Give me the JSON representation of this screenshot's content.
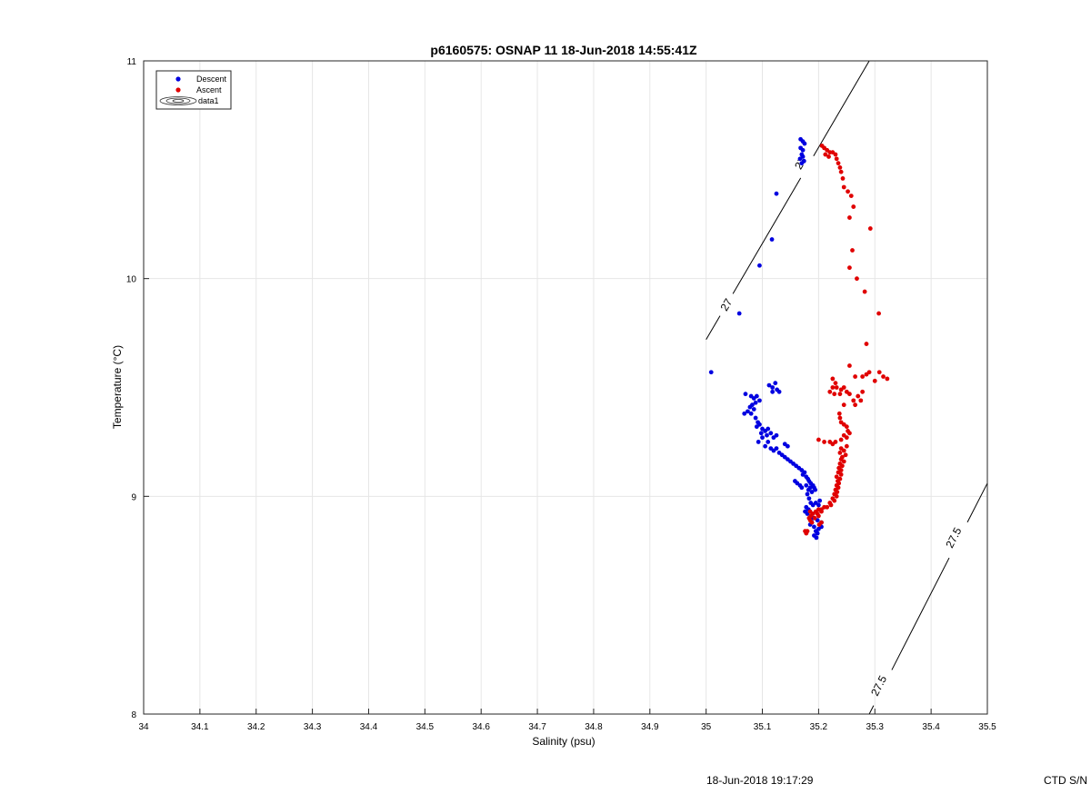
{
  "chart_data": {
    "type": "scatter",
    "title": "p6160575: OSNAP 11 18-Jun-2018 14:55:41Z",
    "xlabel": "Salinity (psu)",
    "ylabel": "Temperature (°C)",
    "xlim": [
      34,
      35.5
    ],
    "ylim": [
      8,
      11
    ],
    "x_ticks": [
      "34",
      "34.1",
      "34.2",
      "34.3",
      "34.4",
      "34.5",
      "34.6",
      "34.7",
      "34.8",
      "34.9",
      "35",
      "35.1",
      "35.2",
      "35.3",
      "35.4",
      "35.5"
    ],
    "y_ticks": [
      "8",
      "9",
      "10",
      "11"
    ],
    "grid": true,
    "legend_position": "top-left",
    "legend": [
      "Descent",
      "Ascent",
      "data1"
    ],
    "contours": [
      {
        "level": "27",
        "points": [
          [
            35.0,
            9.72
          ],
          [
            35.29,
            11.0
          ]
        ],
        "labels": [
          [
            35.036,
            9.88
          ],
          [
            35.168,
            10.53
          ]
        ]
      },
      {
        "level": "27.5",
        "points": [
          [
            35.29,
            8.0
          ],
          [
            35.5,
            9.06
          ]
        ],
        "labels": [
          [
            35.307,
            8.13
          ],
          [
            35.44,
            8.81
          ]
        ]
      }
    ],
    "series": [
      {
        "name": "Descent",
        "color": "#0000e0",
        "points": [
          [
            35.168,
            10.64
          ],
          [
            35.172,
            10.63
          ],
          [
            35.175,
            10.62
          ],
          [
            35.168,
            10.6
          ],
          [
            35.172,
            10.59
          ],
          [
            35.17,
            10.57
          ],
          [
            35.167,
            10.55
          ],
          [
            35.174,
            10.54
          ],
          [
            35.172,
            10.56
          ],
          [
            35.17,
            10.53
          ],
          [
            35.125,
            10.39
          ],
          [
            35.117,
            10.18
          ],
          [
            35.095,
            10.06
          ],
          [
            35.059,
            9.84
          ],
          [
            35.009,
            9.57
          ],
          [
            35.07,
            9.47
          ],
          [
            35.08,
            9.46
          ],
          [
            35.085,
            9.45
          ],
          [
            35.09,
            9.46
          ],
          [
            35.095,
            9.44
          ],
          [
            35.088,
            9.43
          ],
          [
            35.082,
            9.42
          ],
          [
            35.078,
            9.41
          ],
          [
            35.085,
            9.4
          ],
          [
            35.074,
            9.39
          ],
          [
            35.068,
            9.38
          ],
          [
            35.08,
            9.38
          ],
          [
            35.112,
            9.51
          ],
          [
            35.118,
            9.5
          ],
          [
            35.123,
            9.52
          ],
          [
            35.126,
            9.49
          ],
          [
            35.118,
            9.48
          ],
          [
            35.13,
            9.48
          ],
          [
            35.088,
            9.36
          ],
          [
            35.092,
            9.34
          ],
          [
            35.095,
            9.33
          ],
          [
            35.09,
            9.32
          ],
          [
            35.1,
            9.31
          ],
          [
            35.105,
            9.3
          ],
          [
            35.11,
            9.31
          ],
          [
            35.115,
            9.29
          ],
          [
            35.108,
            9.28
          ],
          [
            35.12,
            9.27
          ],
          [
            35.125,
            9.28
          ],
          [
            35.1,
            9.27
          ],
          [
            35.098,
            9.29
          ],
          [
            35.093,
            9.25
          ],
          [
            35.11,
            9.25
          ],
          [
            35.105,
            9.23
          ],
          [
            35.115,
            9.22
          ],
          [
            35.12,
            9.21
          ],
          [
            35.125,
            9.22
          ],
          [
            35.13,
            9.2
          ],
          [
            35.14,
            9.24
          ],
          [
            35.145,
            9.23
          ],
          [
            35.135,
            9.19
          ],
          [
            35.14,
            9.18
          ],
          [
            35.145,
            9.17
          ],
          [
            35.15,
            9.16
          ],
          [
            35.155,
            9.15
          ],
          [
            35.16,
            9.14
          ],
          [
            35.165,
            9.13
          ],
          [
            35.17,
            9.12
          ],
          [
            35.175,
            9.11
          ],
          [
            35.172,
            9.1
          ],
          [
            35.178,
            9.09
          ],
          [
            35.181,
            9.08
          ],
          [
            35.183,
            9.07
          ],
          [
            35.186,
            9.06
          ],
          [
            35.19,
            9.05
          ],
          [
            35.192,
            9.04
          ],
          [
            35.194,
            9.03
          ],
          [
            35.188,
            9.02
          ],
          [
            35.185,
            9.04
          ],
          [
            35.182,
            9.03
          ],
          [
            35.178,
            9.05
          ],
          [
            35.18,
            9.01
          ],
          [
            35.183,
            8.99
          ],
          [
            35.186,
            8.97
          ],
          [
            35.19,
            8.96
          ],
          [
            35.178,
            8.95
          ],
          [
            35.182,
            8.94
          ],
          [
            35.176,
            8.93
          ],
          [
            35.18,
            8.92
          ],
          [
            35.195,
            8.97
          ],
          [
            35.2,
            8.96
          ],
          [
            35.202,
            8.98
          ],
          [
            35.19,
            8.9
          ],
          [
            35.188,
            8.88
          ],
          [
            35.192,
            8.86
          ],
          [
            35.185,
            8.87
          ],
          [
            35.195,
            8.84
          ],
          [
            35.198,
            8.83
          ],
          [
            35.192,
            8.82
          ],
          [
            35.196,
            8.81
          ],
          [
            35.2,
            8.85
          ],
          [
            35.205,
            8.86
          ],
          [
            35.205,
            8.88
          ],
          [
            35.198,
            8.89
          ],
          [
            35.162,
            9.06
          ],
          [
            35.167,
            9.05
          ],
          [
            35.17,
            9.04
          ],
          [
            35.158,
            9.07
          ]
        ]
      },
      {
        "name": "Ascent",
        "color": "#e00000",
        "points": [
          [
            35.206,
            10.61
          ],
          [
            35.21,
            10.6
          ],
          [
            35.215,
            10.59
          ],
          [
            35.22,
            10.58
          ],
          [
            35.212,
            10.57
          ],
          [
            35.218,
            10.56
          ],
          [
            35.225,
            10.58
          ],
          [
            35.23,
            10.57
          ],
          [
            35.232,
            10.55
          ],
          [
            35.235,
            10.53
          ],
          [
            35.238,
            10.51
          ],
          [
            35.24,
            10.49
          ],
          [
            35.243,
            10.46
          ],
          [
            35.245,
            10.42
          ],
          [
            35.252,
            10.4
          ],
          [
            35.258,
            10.38
          ],
          [
            35.262,
            10.33
          ],
          [
            35.255,
            10.28
          ],
          [
            35.292,
            10.23
          ],
          [
            35.26,
            10.13
          ],
          [
            35.255,
            10.05
          ],
          [
            35.268,
            10.0
          ],
          [
            35.282,
            9.94
          ],
          [
            35.307,
            9.84
          ],
          [
            35.285,
            9.7
          ],
          [
            35.255,
            9.6
          ],
          [
            35.265,
            9.55
          ],
          [
            35.278,
            9.55
          ],
          [
            35.285,
            9.56
          ],
          [
            35.29,
            9.57
          ],
          [
            35.308,
            9.57
          ],
          [
            35.315,
            9.55
          ],
          [
            35.322,
            9.54
          ],
          [
            35.3,
            9.53
          ],
          [
            35.225,
            9.54
          ],
          [
            35.23,
            9.52
          ],
          [
            35.225,
            9.5
          ],
          [
            35.232,
            9.5
          ],
          [
            35.24,
            9.49
          ],
          [
            35.245,
            9.5
          ],
          [
            35.22,
            9.48
          ],
          [
            35.228,
            9.47
          ],
          [
            35.238,
            9.47
          ],
          [
            35.25,
            9.48
          ],
          [
            35.255,
            9.47
          ],
          [
            35.278,
            9.48
          ],
          [
            35.27,
            9.46
          ],
          [
            35.262,
            9.44
          ],
          [
            35.275,
            9.44
          ],
          [
            35.245,
            9.42
          ],
          [
            35.265,
            9.42
          ],
          [
            35.237,
            9.38
          ],
          [
            35.238,
            9.36
          ],
          [
            35.24,
            9.34
          ],
          [
            35.245,
            9.33
          ],
          [
            35.25,
            9.32
          ],
          [
            35.252,
            9.3
          ],
          [
            35.255,
            9.29
          ],
          [
            35.245,
            9.28
          ],
          [
            35.25,
            9.27
          ],
          [
            35.24,
            9.26
          ],
          [
            35.2,
            9.26
          ],
          [
            35.21,
            9.25
          ],
          [
            35.22,
            9.25
          ],
          [
            35.225,
            9.24
          ],
          [
            35.23,
            9.25
          ],
          [
            35.24,
            9.22
          ],
          [
            35.25,
            9.23
          ],
          [
            35.245,
            9.21
          ],
          [
            35.238,
            9.2
          ],
          [
            35.248,
            9.19
          ],
          [
            35.242,
            9.18
          ],
          [
            35.24,
            9.17
          ],
          [
            35.245,
            9.16
          ],
          [
            35.238,
            9.15
          ],
          [
            35.242,
            9.14
          ],
          [
            35.236,
            9.13
          ],
          [
            35.24,
            9.12
          ],
          [
            35.235,
            9.11
          ],
          [
            35.24,
            9.1
          ],
          [
            35.232,
            9.09
          ],
          [
            35.238,
            9.08
          ],
          [
            35.234,
            9.07
          ],
          [
            35.236,
            9.06
          ],
          [
            35.232,
            9.05
          ],
          [
            35.235,
            9.04
          ],
          [
            35.23,
            9.03
          ],
          [
            35.233,
            9.02
          ],
          [
            35.228,
            9.01
          ],
          [
            35.232,
            9.0
          ],
          [
            35.225,
            8.99
          ],
          [
            35.228,
            8.98
          ],
          [
            35.22,
            8.97
          ],
          [
            35.222,
            8.96
          ],
          [
            35.215,
            8.95
          ],
          [
            35.21,
            8.95
          ],
          [
            35.205,
            8.94
          ],
          [
            35.2,
            8.94
          ],
          [
            35.195,
            8.93
          ],
          [
            35.19,
            8.92
          ],
          [
            35.186,
            8.91
          ],
          [
            35.183,
            8.9
          ],
          [
            35.198,
            8.92
          ],
          [
            35.205,
            8.93
          ],
          [
            35.2,
            8.91
          ],
          [
            35.193,
            8.9
          ],
          [
            35.185,
            8.89
          ],
          [
            35.188,
            8.88
          ],
          [
            35.18,
            8.84
          ],
          [
            35.176,
            8.84
          ],
          [
            35.178,
            8.83
          ],
          [
            35.201,
            8.87
          ],
          [
            35.205,
            8.88
          ],
          [
            35.185,
            8.93
          ]
        ]
      }
    ]
  },
  "footer": {
    "date": "18-Jun-2018 19:17:29",
    "ctd": "CTD S/N"
  }
}
